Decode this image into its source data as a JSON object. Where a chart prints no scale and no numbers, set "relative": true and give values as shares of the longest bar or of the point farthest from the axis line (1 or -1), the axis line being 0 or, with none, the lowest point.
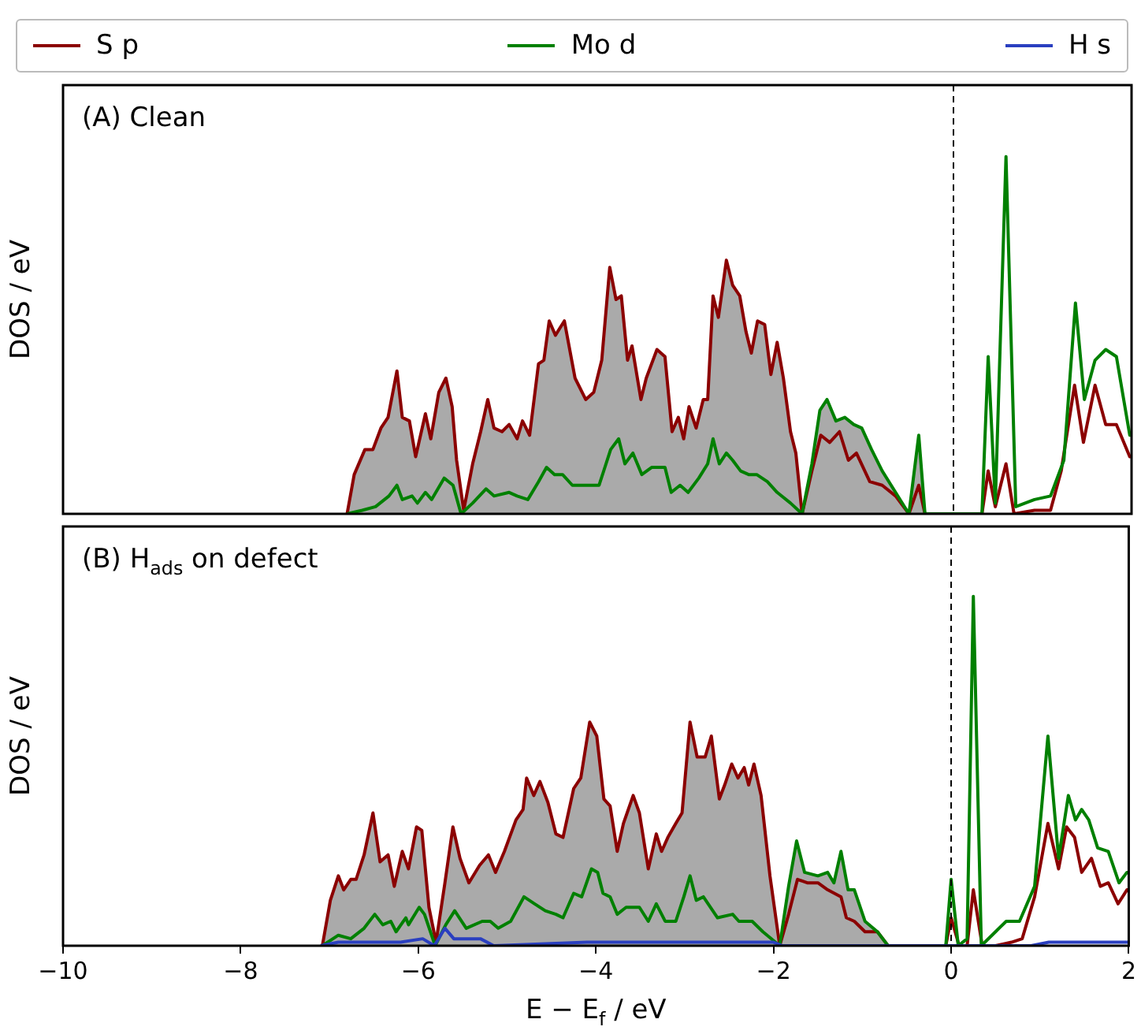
{
  "chart_data": [
    {
      "type": "line",
      "annotations": [
        "(A) Clean"
      ],
      "ylabel": "DOS / eV",
      "relative": true,
      "xlim": [
        -10,
        2
      ],
      "xticks": [
        -10,
        -8,
        -6,
        -4,
        -2,
        0,
        2
      ],
      "tick_labels": false,
      "legend": "top",
      "marker": "none",
      "ref_lines": [
        {
          "axis": "x",
          "value": 0,
          "color": "#000000",
          "line_style": "dashed"
        }
      ],
      "series": [
        {
          "type": "area",
          "color": "#aaaaaa",
          "x": [
            -6.81,
            -6.73,
            -6.61,
            -6.52,
            -6.43,
            -6.35,
            -6.25,
            -6.19,
            -6.11,
            -6.04,
            -5.93,
            -5.87,
            -5.78,
            -5.7,
            -5.63,
            -5.58,
            -5.5,
            -5.4,
            -5.31,
            -5.23,
            -5.16,
            -5.07,
            -4.99,
            -4.9,
            -4.84,
            -4.76,
            -4.66,
            -4.6,
            -4.54,
            -4.47,
            -4.37,
            -4.25,
            -4.13,
            -4.04,
            -3.95,
            -3.86,
            -3.79,
            -3.73,
            -3.66,
            -3.61,
            -3.51,
            -3.45,
            -3.33,
            -3.24,
            -3.16,
            -3.09,
            -3.03,
            -2.97,
            -2.89,
            -2.81,
            -2.76,
            -2.7,
            -2.64,
            -2.55,
            -2.48,
            -2.4,
            -2.33,
            -2.27,
            -2.2,
            -2.12,
            -2.05,
            -1.98,
            -1.91,
            -1.83,
            -1.77,
            -1.7,
            -1.59,
            -1.49,
            -1.42,
            -1.32,
            -1.22,
            -1.12,
            -1.03,
            -0.92,
            -0.8,
            -0.65,
            -0.5,
            -0.39,
            -0.32
          ],
          "values": [
            0,
            0.11,
            0.18,
            0.18,
            0.24,
            0.27,
            0.4,
            0.27,
            0.26,
            0.16,
            0.28,
            0.21,
            0.34,
            0.38,
            0.3,
            0.15,
            0.01,
            0.14,
            0.23,
            0.32,
            0.24,
            0.23,
            0.25,
            0.21,
            0.26,
            0.22,
            0.42,
            0.43,
            0.54,
            0.5,
            0.54,
            0.38,
            0.32,
            0.34,
            0.43,
            0.69,
            0.6,
            0.61,
            0.43,
            0.47,
            0.32,
            0.38,
            0.46,
            0.44,
            0.23,
            0.27,
            0.21,
            0.3,
            0.24,
            0.32,
            0.32,
            0.61,
            0.55,
            0.71,
            0.64,
            0.61,
            0.51,
            0.45,
            0.54,
            0.53,
            0.39,
            0.48,
            0.38,
            0.23,
            0.17,
            0,
            0.14,
            0.29,
            0.32,
            0.26,
            0.27,
            0.25,
            0.24,
            0.18,
            0.12,
            0.06,
            0,
            0.22,
            0
          ]
        },
        {
          "type": "line",
          "name": "S p",
          "color": "#8b0000",
          "x": [
            -6.81,
            -6.73,
            -6.61,
            -6.52,
            -6.43,
            -6.35,
            -6.25,
            -6.19,
            -6.11,
            -6.04,
            -5.93,
            -5.87,
            -5.78,
            -5.7,
            -5.63,
            -5.58,
            -5.5,
            -5.4,
            -5.31,
            -5.23,
            -5.16,
            -5.07,
            -4.99,
            -4.9,
            -4.84,
            -4.76,
            -4.66,
            -4.6,
            -4.54,
            -4.47,
            -4.37,
            -4.25,
            -4.13,
            -4.04,
            -3.95,
            -3.86,
            -3.79,
            -3.73,
            -3.66,
            -3.61,
            -3.51,
            -3.45,
            -3.33,
            -3.24,
            -3.16,
            -3.09,
            -3.03,
            -2.97,
            -2.89,
            -2.81,
            -2.76,
            -2.7,
            -2.64,
            -2.55,
            -2.48,
            -2.4,
            -2.33,
            -2.27,
            -2.2,
            -2.12,
            -2.05,
            -1.98,
            -1.91,
            -1.83,
            -1.77,
            -1.7,
            -1.59,
            -1.49,
            -1.39,
            -1.28,
            -1.18,
            -1.09,
            -0.94,
            -0.8,
            -0.65,
            -0.5,
            -0.39,
            -0.32,
            0.32,
            0.39,
            0.47,
            0.59,
            0.68,
            0.91,
            1.09,
            1.21,
            1.36,
            1.46,
            1.59,
            1.71,
            1.83,
            1.98,
            2
          ],
          "values": [
            0,
            0.11,
            0.18,
            0.18,
            0.24,
            0.27,
            0.4,
            0.27,
            0.26,
            0.16,
            0.28,
            0.21,
            0.34,
            0.38,
            0.3,
            0.15,
            0.01,
            0.14,
            0.23,
            0.32,
            0.24,
            0.23,
            0.25,
            0.21,
            0.26,
            0.22,
            0.42,
            0.43,
            0.54,
            0.5,
            0.54,
            0.38,
            0.32,
            0.34,
            0.43,
            0.69,
            0.6,
            0.61,
            0.43,
            0.47,
            0.32,
            0.38,
            0.46,
            0.44,
            0.23,
            0.27,
            0.21,
            0.3,
            0.24,
            0.32,
            0.32,
            0.61,
            0.55,
            0.71,
            0.64,
            0.61,
            0.51,
            0.45,
            0.54,
            0.53,
            0.39,
            0.48,
            0.38,
            0.23,
            0.17,
            0,
            0.12,
            0.22,
            0.2,
            0.23,
            0.15,
            0.17,
            0.09,
            0.08,
            0.05,
            0,
            0.08,
            0,
            0,
            0.12,
            0.02,
            0.14,
            0,
            0.01,
            0.01,
            0.12,
            0.36,
            0.2,
            0.36,
            0.25,
            0.25,
            0.16,
            0.16
          ]
        },
        {
          "type": "line",
          "name": "Mo d",
          "color": "#008000",
          "x": [
            -6.81,
            -6.64,
            -6.49,
            -6.34,
            -6.25,
            -6.19,
            -6.08,
            -6.02,
            -5.93,
            -5.86,
            -5.72,
            -5.62,
            -5.53,
            -5.4,
            -5.25,
            -5.16,
            -4.99,
            -4.9,
            -4.78,
            -4.66,
            -4.57,
            -4.48,
            -4.39,
            -4.28,
            -4.1,
            -3.98,
            -3.85,
            -3.76,
            -3.69,
            -3.6,
            -3.5,
            -3.39,
            -3.24,
            -3.17,
            -3.07,
            -2.98,
            -2.86,
            -2.76,
            -2.7,
            -2.63,
            -2.55,
            -2.48,
            -2.39,
            -2.3,
            -2.21,
            -2.09,
            -1.98,
            -1.83,
            -1.7,
            -1.59,
            -1.5,
            -1.42,
            -1.32,
            -1.22,
            -1.12,
            -1.03,
            -0.92,
            -0.8,
            -0.65,
            -0.5,
            -0.39,
            -0.32,
            0.32,
            0.39,
            0.47,
            0.59,
            0.7,
            0.91,
            1.09,
            1.24,
            1.37,
            1.47,
            1.59,
            1.71,
            1.83,
            1.98,
            2
          ],
          "values": [
            0,
            0.01,
            0.02,
            0.05,
            0.08,
            0.04,
            0.05,
            0.03,
            0.06,
            0.04,
            0.1,
            0.08,
            0,
            0.03,
            0.07,
            0.05,
            0.06,
            0.05,
            0.04,
            0.09,
            0.13,
            0.11,
            0.11,
            0.08,
            0.08,
            0.08,
            0.18,
            0.21,
            0.14,
            0.17,
            0.11,
            0.13,
            0.13,
            0.06,
            0.08,
            0.06,
            0.1,
            0.14,
            0.21,
            0.14,
            0.17,
            0.15,
            0.12,
            0.11,
            0.11,
            0.09,
            0.06,
            0.03,
            0,
            0.14,
            0.29,
            0.32,
            0.26,
            0.27,
            0.25,
            0.24,
            0.18,
            0.12,
            0.06,
            0,
            0.22,
            0,
            0,
            0.44,
            0.03,
            1,
            0.02,
            0.04,
            0.05,
            0.15,
            0.59,
            0.32,
            0.43,
            0.46,
            0.44,
            0.22,
            0.22
          ]
        }
      ]
    },
    {
      "type": "line",
      "annotations": [
        "(B) H$_{ads}$ on defect"
      ],
      "xlabel": "E − E$_{f}$ / eV",
      "ylabel": "DOS / eV",
      "relative": true,
      "xlim": [
        -10,
        2
      ],
      "xticks": [
        -10,
        -8,
        -6,
        -4,
        -2,
        0,
        2
      ],
      "tick_labels": "x",
      "legend": "top",
      "marker": "none",
      "ref_lines": [
        {
          "axis": "x",
          "value": 0,
          "color": "#000000",
          "line_style": "dashed"
        }
      ],
      "series": [
        {
          "type": "area",
          "color": "#aaaaaa",
          "x": [
            -7.08,
            -6.99,
            -6.9,
            -6.84,
            -6.76,
            -6.7,
            -6.61,
            -6.51,
            -6.43,
            -6.34,
            -6.27,
            -6.18,
            -6.11,
            -6.02,
            -5.96,
            -5.88,
            -5.8,
            -5.7,
            -5.61,
            -5.53,
            -5.43,
            -5.31,
            -5.21,
            -5.13,
            -5.03,
            -4.9,
            -4.82,
            -4.78,
            -4.7,
            -4.63,
            -4.54,
            -4.45,
            -4.37,
            -4.25,
            -4.17,
            -4.07,
            -3.99,
            -3.91,
            -3.84,
            -3.76,
            -3.69,
            -3.58,
            -3.51,
            -3.41,
            -3.32,
            -3.26,
            -3.19,
            -3.1,
            -3.03,
            -2.94,
            -2.86,
            -2.77,
            -2.7,
            -2.61,
            -2.55,
            -2.47,
            -2.4,
            -2.33,
            -2.28,
            -2.22,
            -2.14,
            -2.04,
            -1.93,
            -1.83,
            -1.74,
            -1.65,
            -1.5,
            -1.39,
            -1.32,
            -1.24,
            -1.16,
            -1.09,
            -0.97,
            -0.83,
            -0.71
          ],
          "values": [
            0,
            0.13,
            0.2,
            0.16,
            0.19,
            0.19,
            0.26,
            0.38,
            0.24,
            0.26,
            0.17,
            0.27,
            0.22,
            0.34,
            0.33,
            0.11,
            0.01,
            0.18,
            0.34,
            0.25,
            0.18,
            0.23,
            0.26,
            0.21,
            0.27,
            0.36,
            0.39,
            0.48,
            0.43,
            0.47,
            0.41,
            0.32,
            0.31,
            0.45,
            0.48,
            0.64,
            0.6,
            0.42,
            0.4,
            0.27,
            0.35,
            0.43,
            0.38,
            0.22,
            0.32,
            0.27,
            0.31,
            0.35,
            0.38,
            0.64,
            0.54,
            0.54,
            0.6,
            0.42,
            0.46,
            0.52,
            0.48,
            0.51,
            0.46,
            0.52,
            0.43,
            0.2,
            0,
            0.17,
            0.3,
            0.21,
            0.2,
            0.21,
            0.18,
            0.27,
            0.16,
            0.16,
            0.07,
            0.04,
            0
          ]
        },
        {
          "type": "line",
          "name": "S p",
          "color": "#8b0000",
          "x": [
            -7.08,
            -6.99,
            -6.9,
            -6.84,
            -6.76,
            -6.7,
            -6.61,
            -6.51,
            -6.43,
            -6.34,
            -6.27,
            -6.18,
            -6.11,
            -6.02,
            -5.96,
            -5.88,
            -5.8,
            -5.7,
            -5.61,
            -5.53,
            -5.43,
            -5.31,
            -5.21,
            -5.13,
            -5.03,
            -4.9,
            -4.82,
            -4.78,
            -4.7,
            -4.63,
            -4.54,
            -4.45,
            -4.37,
            -4.25,
            -4.17,
            -4.07,
            -3.99,
            -3.91,
            -3.84,
            -3.76,
            -3.69,
            -3.58,
            -3.51,
            -3.41,
            -3.32,
            -3.26,
            -3.19,
            -3.1,
            -3.03,
            -2.94,
            -2.86,
            -2.77,
            -2.7,
            -2.61,
            -2.55,
            -2.47,
            -2.4,
            -2.33,
            -2.28,
            -2.22,
            -2.14,
            -2.04,
            -1.93,
            -1.83,
            -1.73,
            -1.62,
            -1.5,
            -1.39,
            -1.24,
            -1.18,
            -1.09,
            -0.97,
            -0.83,
            -0.71,
            -0.06,
            0,
            0.09,
            0.18,
            0.25,
            0.35,
            0.5,
            0.68,
            0.8,
            0.94,
            1.09,
            1.21,
            1.3,
            1.39,
            1.47,
            1.58,
            1.68,
            1.77,
            1.88,
            1.98,
            2
          ],
          "values": [
            0,
            0.13,
            0.2,
            0.16,
            0.19,
            0.19,
            0.26,
            0.38,
            0.24,
            0.26,
            0.17,
            0.27,
            0.22,
            0.34,
            0.33,
            0.11,
            0.01,
            0.18,
            0.34,
            0.25,
            0.18,
            0.23,
            0.26,
            0.21,
            0.27,
            0.36,
            0.39,
            0.48,
            0.43,
            0.47,
            0.41,
            0.32,
            0.31,
            0.45,
            0.48,
            0.64,
            0.6,
            0.42,
            0.4,
            0.27,
            0.35,
            0.43,
            0.38,
            0.22,
            0.32,
            0.27,
            0.31,
            0.35,
            0.38,
            0.64,
            0.54,
            0.54,
            0.6,
            0.42,
            0.46,
            0.52,
            0.48,
            0.51,
            0.46,
            0.52,
            0.43,
            0.2,
            0,
            0.09,
            0.19,
            0.18,
            0.18,
            0.16,
            0.14,
            0.08,
            0.07,
            0.04,
            0.04,
            0,
            0,
            0.08,
            0,
            0,
            0.16,
            0,
            0,
            0.01,
            0.02,
            0.14,
            0.35,
            0.22,
            0.34,
            0.31,
            0.21,
            0.25,
            0.17,
            0.18,
            0.12,
            0.16,
            0.16
          ]
        },
        {
          "type": "line",
          "name": "Mo d",
          "color": "#008000",
          "x": [
            -7.08,
            -6.9,
            -6.76,
            -6.61,
            -6.49,
            -6.4,
            -6.31,
            -6.25,
            -6.14,
            -6.11,
            -5.99,
            -5.93,
            -5.81,
            -5.69,
            -5.59,
            -5.46,
            -5.28,
            -5.19,
            -5.1,
            -4.96,
            -4.81,
            -4.69,
            -4.57,
            -4.45,
            -4.37,
            -4.25,
            -4.16,
            -4.05,
            -3.98,
            -3.92,
            -3.84,
            -3.76,
            -3.66,
            -3.51,
            -3.41,
            -3.32,
            -3.22,
            -3.1,
            -3.01,
            -2.94,
            -2.87,
            -2.79,
            -2.63,
            -2.46,
            -2.39,
            -2.24,
            -2.12,
            -1.93,
            -1.83,
            -1.74,
            -1.65,
            -1.5,
            -1.39,
            -1.32,
            -1.24,
            -1.16,
            -1.09,
            -0.97,
            -0.83,
            -0.71,
            -0.06,
            0,
            0.08,
            0.18,
            0.25,
            0.34,
            0.5,
            0.62,
            0.77,
            0.94,
            1.09,
            1.21,
            1.32,
            1.4,
            1.47,
            1.55,
            1.65,
            1.77,
            1.89,
            1.98,
            2
          ],
          "values": [
            0,
            0.03,
            0.02,
            0.05,
            0.09,
            0.06,
            0.07,
            0.04,
            0.08,
            0.06,
            0.11,
            0.09,
            0,
            0.06,
            0.1,
            0.05,
            0.07,
            0.07,
            0.05,
            0.07,
            0.14,
            0.12,
            0.1,
            0.09,
            0.08,
            0.15,
            0.14,
            0.22,
            0.21,
            0.15,
            0.14,
            0.09,
            0.11,
            0.11,
            0.07,
            0.12,
            0.07,
            0.07,
            0.14,
            0.2,
            0.13,
            0.14,
            0.08,
            0.09,
            0.07,
            0.07,
            0.04,
            0,
            0.17,
            0.3,
            0.21,
            0.2,
            0.21,
            0.18,
            0.27,
            0.16,
            0.16,
            0.07,
            0.04,
            0,
            0,
            0.19,
            0,
            0.02,
            1,
            0,
            0.04,
            0.07,
            0.07,
            0.17,
            0.6,
            0.25,
            0.43,
            0.36,
            0.39,
            0.36,
            0.28,
            0.27,
            0.18,
            0.21,
            0.21
          ]
        },
        {
          "type": "line",
          "name": "H s",
          "color": "#2a3fc0",
          "x": [
            -7.1,
            -6.9,
            -6.2,
            -5.95,
            -5.82,
            -5.7,
            -5.6,
            -5.4,
            -5.3,
            -5.15,
            -4.1,
            -3.5,
            -2,
            -1.9,
            0.9,
            1.1,
            2
          ],
          "values": [
            0,
            0.01,
            0.01,
            0.02,
            0,
            0.05,
            0.02,
            0.02,
            0.02,
            0,
            0.01,
            0.01,
            0.01,
            0,
            0,
            0.01,
            0.01
          ]
        }
      ]
    }
  ]
}
